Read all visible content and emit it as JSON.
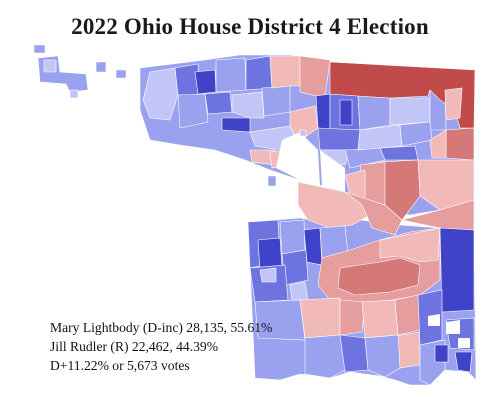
{
  "title": "2022 Ohio House District 4 Election",
  "results": {
    "dem_line": "Mary Lightbody (D-inc) 28,135, 55.61%",
    "rep_line": "Jill Rudler (R) 22,462, 44.39%",
    "margin_line": "D+11.22% or 5,673 votes"
  },
  "colors": {
    "dem_strong": "#3f43c8",
    "dem_mid": "#6e74df",
    "dem_lean": "#9aa1ee",
    "dem_light": "#c1c6f6",
    "rep_light": "#f2b9b9",
    "rep_lean": "#e69d9d",
    "rep_mid": "#d47878",
    "rep_strong": "#c14a4a"
  }
}
